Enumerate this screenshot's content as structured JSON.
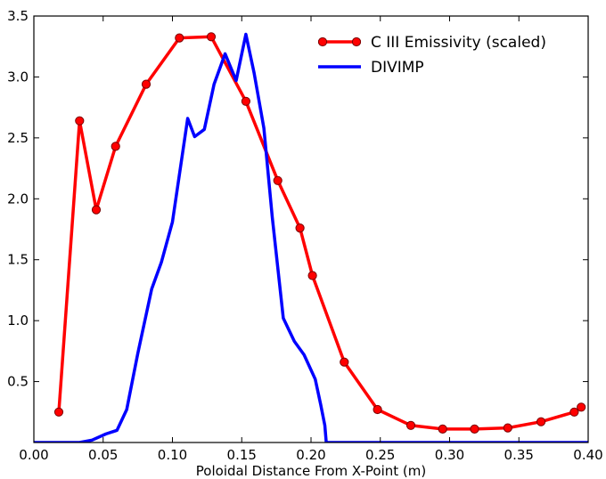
{
  "chart_data": {
    "type": "line",
    "xlabel": "Poloidal Distance From X-Point (m)",
    "ylabel": "",
    "title": "",
    "xlim": [
      0.0,
      0.4
    ],
    "ylim": [
      0.0,
      3.5
    ],
    "xticks": [
      "0.00",
      "0.05",
      "0.10",
      "0.15",
      "0.20",
      "0.25",
      "0.30",
      "0.35",
      "0.40"
    ],
    "yticks": [
      "0.5",
      "1.0",
      "1.5",
      "2.0",
      "2.5",
      "3.0",
      "3.5"
    ],
    "grid": false,
    "legend_position": "top-right",
    "series": [
      {
        "name": "C III Emissivity (scaled)",
        "color": "#ff0000",
        "marker": "circle",
        "x": [
          0.018,
          0.033,
          0.045,
          0.059,
          0.081,
          0.105,
          0.128,
          0.153,
          0.176,
          0.192,
          0.201,
          0.224,
          0.248,
          0.272,
          0.295,
          0.318,
          0.342,
          0.366,
          0.39,
          0.395
        ],
        "y": [
          0.25,
          2.64,
          1.91,
          2.43,
          2.94,
          3.32,
          3.33,
          2.8,
          2.15,
          1.76,
          1.37,
          0.66,
          0.27,
          0.14,
          0.11,
          0.11,
          0.12,
          0.17,
          0.25,
          0.29
        ]
      },
      {
        "name": "DIVIMP",
        "color": "#0000ff",
        "marker": "none",
        "x": [
          0.0,
          0.033,
          0.042,
          0.052,
          0.06,
          0.067,
          0.075,
          0.085,
          0.092,
          0.1,
          0.111,
          0.116,
          0.123,
          0.13,
          0.138,
          0.146,
          0.153,
          0.159,
          0.166,
          0.172,
          0.18,
          0.188,
          0.195,
          0.203,
          0.207,
          0.21,
          0.211,
          0.4
        ],
        "y": [
          0.0,
          0.0,
          0.02,
          0.07,
          0.1,
          0.27,
          0.73,
          1.26,
          1.48,
          1.81,
          2.66,
          2.51,
          2.57,
          2.94,
          3.19,
          2.97,
          3.35,
          3.03,
          2.58,
          1.85,
          1.02,
          0.83,
          0.72,
          0.52,
          0.31,
          0.14,
          0.0,
          0.0
        ]
      }
    ]
  }
}
